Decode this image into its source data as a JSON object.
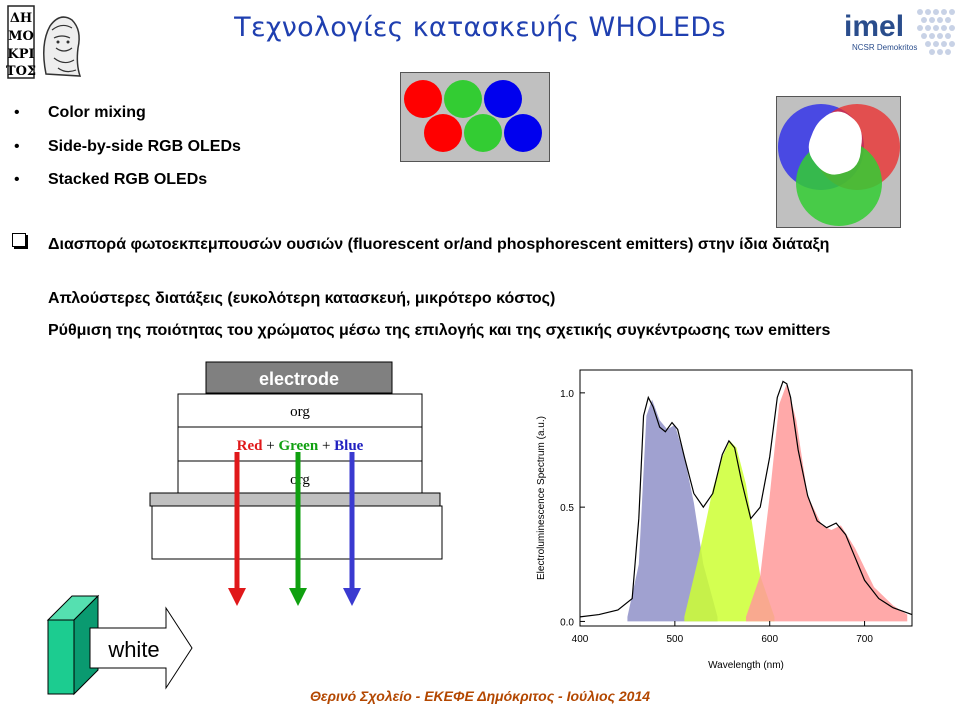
{
  "title": "Τεχνολογίες κατασκευής WHOLEDs",
  "logos": {
    "left_text": "ΔΗΜΟΚΡΙΤΟΣ",
    "right_text": "imel",
    "right_sub": "NCSR Demokritos"
  },
  "bullets": [
    {
      "marker": "•",
      "text": "Color mixing"
    },
    {
      "marker": "•",
      "text": "Side-by-side RGB OLEDs"
    },
    {
      "marker": "•",
      "text": "Stacked RGB OLEDs"
    }
  ],
  "paragraphs": [
    "Διασπορά φωτοεκπεμπουσών ουσιών (fluorescent or/and phosphorescent emitters) στην ίδια διάταξη",
    "Απλούστερες διατάξεις (ευκολότερη κατασκευή, μικρότερο κόστος)",
    "Ρύθμιση της ποιότητας του χρώματος μέσω της επιλογής και της σχετικής συγκέντρωσης των emitters"
  ],
  "device": {
    "electrode": "electrode",
    "layer_top": "org",
    "emitters": {
      "red": "Red",
      "plus1": " + ",
      "green": "Green",
      "plus2": " + ",
      "blue": "Blue"
    },
    "layer_bottom": "org",
    "colors": {
      "red": "#e0181a",
      "green": "#10a010",
      "blue": "#3a3ad0"
    }
  },
  "white_label": "white",
  "chart_data": {
    "type": "area",
    "xlabel": "Wavelength (nm)",
    "ylabel": "Electroluminescence Spectrum (a.u.)",
    "xlim": [
      400,
      750
    ],
    "ylim": [
      -0.02,
      1.1
    ],
    "xticks": [
      "400",
      "500",
      "600",
      "700"
    ],
    "yticks": [
      "0.0",
      "0.5",
      "1.0"
    ],
    "series": [
      {
        "color": "#8f90c8",
        "x": [
          450,
          462,
          470,
          476,
          484,
          492,
          500,
          510,
          520,
          530,
          545
        ],
        "y": [
          0.02,
          0.25,
          0.9,
          0.97,
          0.88,
          0.84,
          0.86,
          0.72,
          0.52,
          0.25,
          0.02
        ]
      },
      {
        "color": "#ccff33",
        "x": [
          510,
          525,
          540,
          550,
          558,
          565,
          575,
          590,
          605
        ],
        "y": [
          0.02,
          0.28,
          0.58,
          0.72,
          0.79,
          0.76,
          0.6,
          0.2,
          0.02
        ]
      },
      {
        "color": "#ff9a9a",
        "x": [
          575,
          590,
          600,
          610,
          618,
          628,
          640,
          655,
          665,
          675,
          690,
          710,
          730,
          745
        ],
        "y": [
          0.02,
          0.2,
          0.55,
          0.95,
          1.04,
          0.88,
          0.55,
          0.42,
          0.4,
          0.42,
          0.32,
          0.15,
          0.07,
          0.03
        ]
      }
    ],
    "spectrum": {
      "x": [
        400,
        420,
        440,
        455,
        462,
        467,
        472,
        477,
        484,
        490,
        497,
        503,
        510,
        520,
        530,
        540,
        550,
        557,
        563,
        570,
        580,
        590,
        600,
        608,
        614,
        618,
        622,
        630,
        640,
        650,
        660,
        670,
        680,
        690,
        700,
        715,
        730,
        750
      ],
      "y": [
        0.02,
        0.03,
        0.05,
        0.1,
        0.45,
        0.9,
        0.98,
        0.94,
        0.85,
        0.83,
        0.87,
        0.84,
        0.72,
        0.56,
        0.5,
        0.56,
        0.73,
        0.79,
        0.76,
        0.62,
        0.45,
        0.5,
        0.72,
        0.98,
        1.05,
        1.04,
        0.98,
        0.75,
        0.55,
        0.44,
        0.41,
        0.43,
        0.38,
        0.28,
        0.18,
        0.1,
        0.06,
        0.03
      ]
    }
  },
  "footer": "Θερινό Σχολείο - ΕΚΕΦΕ Δημόκριτος - Ιούλιος 2014"
}
